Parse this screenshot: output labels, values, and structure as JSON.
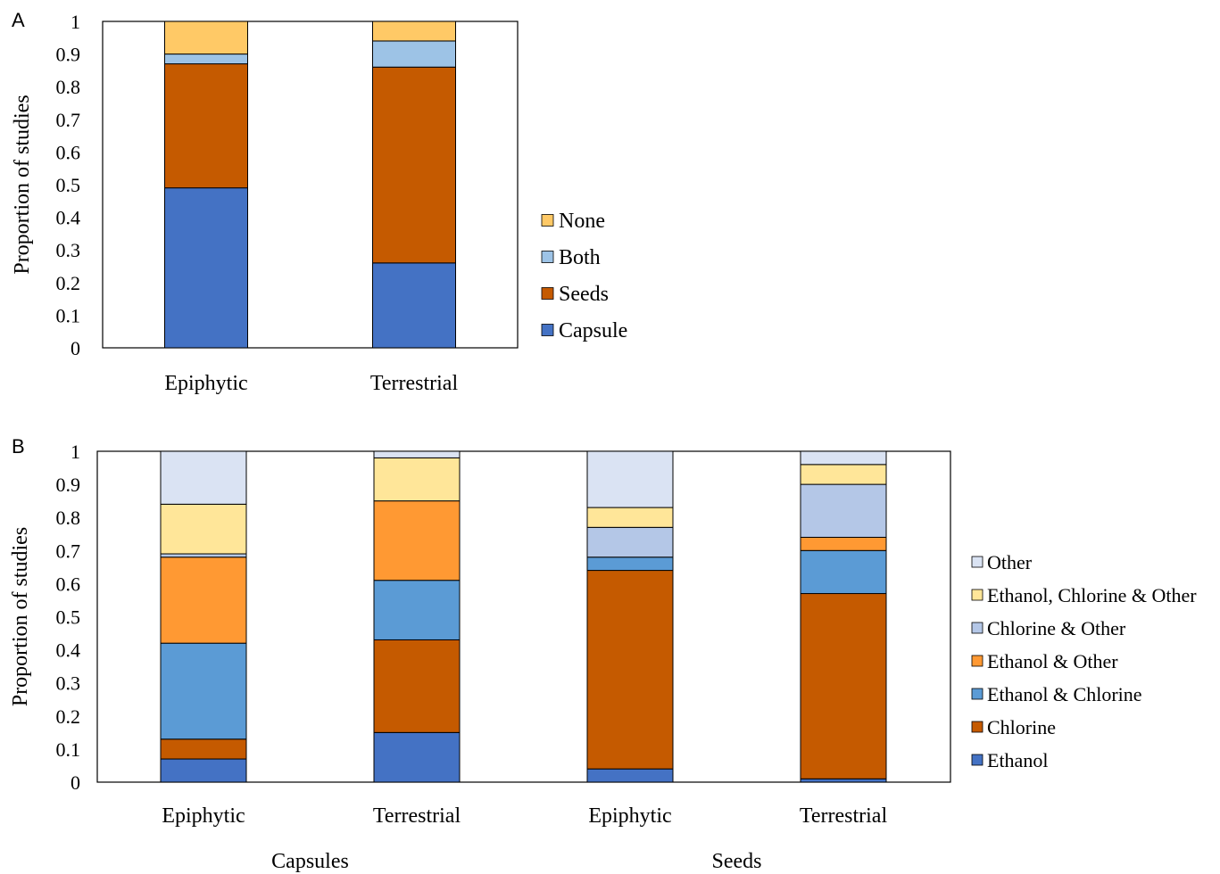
{
  "chart_data": [
    {
      "panel_label": "A",
      "type": "bar",
      "stacked": true,
      "ylabel": "Proportion of studies",
      "ylim": [
        0,
        1
      ],
      "yticks": [
        "0",
        "0.1",
        "0.2",
        "0.3",
        "0.4",
        "0.5",
        "0.6",
        "0.7",
        "0.8",
        "0.9",
        "1"
      ],
      "categories": [
        "Epiphytic",
        "Terrestrial"
      ],
      "legend_position": "right",
      "series": [
        {
          "name": "Capsule",
          "color": "#4472C4",
          "values": [
            0.49,
            0.26
          ]
        },
        {
          "name": "Seeds",
          "color": "#C55A00",
          "values": [
            0.38,
            0.6
          ]
        },
        {
          "name": "Both",
          "color": "#9DC3E6",
          "values": [
            0.03,
            0.08
          ]
        },
        {
          "name": "None",
          "color": "#FFC966",
          "values": [
            0.1,
            0.06
          ]
        }
      ]
    },
    {
      "panel_label": "B",
      "type": "bar",
      "stacked": true,
      "ylabel": "Proportion of studies",
      "ylim": [
        0,
        1
      ],
      "yticks": [
        "0",
        "0.1",
        "0.2",
        "0.3",
        "0.4",
        "0.5",
        "0.6",
        "0.7",
        "0.8",
        "0.9",
        "1"
      ],
      "categories": [
        "Epiphytic",
        "Terrestrial",
        "Epiphytic",
        "Terrestrial"
      ],
      "groups": [
        {
          "label": "Capsules",
          "span": [
            0,
            1
          ]
        },
        {
          "label": "Seeds",
          "span": [
            2,
            3
          ]
        }
      ],
      "legend_position": "right",
      "series": [
        {
          "name": "Ethanol",
          "color": "#4472C4",
          "values": [
            0.07,
            0.15,
            0.04,
            0.01
          ]
        },
        {
          "name": "Chlorine",
          "color": "#C55A00",
          "values": [
            0.06,
            0.28,
            0.6,
            0.56
          ]
        },
        {
          "name": "Ethanol & Chlorine",
          "color": "#5B9BD5",
          "values": [
            0.29,
            0.18,
            0.04,
            0.13
          ]
        },
        {
          "name": "Ethanol & Other",
          "color": "#FF9933",
          "values": [
            0.26,
            0.24,
            0.0,
            0.04
          ]
        },
        {
          "name": "Chlorine & Other",
          "color": "#B4C7E7",
          "values": [
            0.01,
            0.0,
            0.09,
            0.16
          ]
        },
        {
          "name": "Ethanol, Chlorine & Other",
          "color": "#FFE699",
          "values": [
            0.15,
            0.13,
            0.06,
            0.06
          ]
        },
        {
          "name": "Other",
          "color": "#DAE3F3",
          "values": [
            0.16,
            0.02,
            0.17,
            0.04
          ]
        }
      ]
    }
  ]
}
